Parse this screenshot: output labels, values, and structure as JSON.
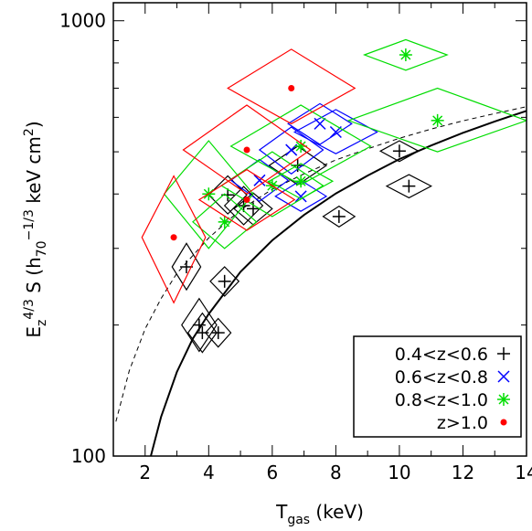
{
  "chart_data": {
    "type": "scatter",
    "xlabel_main": "T",
    "xlabel_sub": "gas",
    "xlabel_rest": " (keV)",
    "ylabel_a": "E",
    "ylabel_a_sub": "z",
    "ylabel_a_sup": "4/3",
    "ylabel_b": " S (h",
    "ylabel_b_sub": "70",
    "ylabel_b_sup": "−1/3",
    "ylabel_c": " keV cm",
    "ylabel_c_sup": "2",
    "ylabel_d": ")",
    "xlim": [
      1,
      14
    ],
    "ylim": [
      100,
      1100
    ],
    "y_log": true,
    "x_ticks": [
      2,
      4,
      6,
      8,
      10,
      12,
      14
    ],
    "x_tick_labels": [
      "2",
      "4",
      "6",
      "8",
      "10",
      "12",
      "14"
    ],
    "y_ticks": [
      100,
      1000
    ],
    "y_tick_labels": [
      "100",
      "1000"
    ],
    "legend": [
      {
        "label": "0.4<z<0.6",
        "color": "#000000",
        "marker": "plus"
      },
      {
        "label": "0.6<z<0.8",
        "color": "#0000ff",
        "marker": "cross"
      },
      {
        "label": "0.8<z<1.0",
        "color": "#00dd00",
        "marker": "asterisk"
      },
      {
        "label": "z>1.0",
        "color": "#ff0000",
        "marker": "dot"
      }
    ],
    "curves": [
      {
        "style": "solid",
        "x": [
          2.18,
          2.5,
          3,
          3.5,
          4,
          5,
          6,
          7,
          8,
          9,
          10,
          11,
          12,
          13,
          14
        ],
        "y": [
          100,
          123,
          156,
          186,
          212,
          265,
          313,
          358,
          401,
          441,
          481,
          517,
          553,
          587,
          621
        ]
      },
      {
        "style": "dashed",
        "x": [
          1.08,
          1.5,
          2,
          2.5,
          3,
          4,
          5,
          6,
          7,
          8,
          9,
          10,
          11,
          12,
          13,
          14
        ],
        "y": [
          120,
          157,
          196,
          230,
          263,
          317,
          368,
          410,
          445,
          479,
          508,
          537,
          564,
          589,
          612,
          635
        ]
      }
    ],
    "series": [
      {
        "name": "0.4<z<0.6",
        "color": "#000000",
        "marker": "plus",
        "points": [
          {
            "x": 3.3,
            "y": 272,
            "dx": 0.45,
            "ylo": 241,
            "yhi": 308
          },
          {
            "x": 3.7,
            "y": 200,
            "dx": 0.55,
            "ylo": 174,
            "yhi": 230
          },
          {
            "x": 3.8,
            "y": 192,
            "dx": 0.45,
            "ylo": 173,
            "yhi": 213
          },
          {
            "x": 4.3,
            "y": 192,
            "dx": 0.4,
            "ylo": 178,
            "yhi": 207
          },
          {
            "x": 4.5,
            "y": 252,
            "dx": 0.45,
            "ylo": 233,
            "yhi": 272
          },
          {
            "x": 4.6,
            "y": 398,
            "dx": 0.6,
            "ylo": 360,
            "yhi": 440
          },
          {
            "x": 5.1,
            "y": 376,
            "dx": 0.6,
            "ylo": 340,
            "yhi": 416
          },
          {
            "x": 5.4,
            "y": 370,
            "dx": 0.6,
            "ylo": 340,
            "yhi": 402
          },
          {
            "x": 6.8,
            "y": 465,
            "dx": 0.9,
            "ylo": 420,
            "yhi": 515
          },
          {
            "x": 8.1,
            "y": 355,
            "dx": 0.5,
            "ylo": 336,
            "yhi": 375
          },
          {
            "x": 10.0,
            "y": 502,
            "dx": 0.6,
            "ylo": 475,
            "yhi": 530
          },
          {
            "x": 10.3,
            "y": 417,
            "dx": 0.7,
            "ylo": 392,
            "yhi": 443
          }
        ]
      },
      {
        "name": "0.6<z<0.8",
        "color": "#0000ff",
        "marker": "cross",
        "points": [
          {
            "x": 5.6,
            "y": 430,
            "dx": 0.9,
            "ylo": 385,
            "yhi": 480
          },
          {
            "x": 6.6,
            "y": 505,
            "dx": 1.0,
            "ylo": 445,
            "yhi": 570
          },
          {
            "x": 6.9,
            "y": 395,
            "dx": 0.8,
            "ylo": 365,
            "yhi": 430
          },
          {
            "x": 7.5,
            "y": 580,
            "dx": 1.0,
            "ylo": 520,
            "yhi": 645
          },
          {
            "x": 8.0,
            "y": 555,
            "dx": 1.3,
            "ylo": 495,
            "yhi": 625
          }
        ]
      },
      {
        "name": "0.8<z<1.0",
        "color": "#00dd00",
        "marker": "asterisk",
        "points": [
          {
            "x": 4.0,
            "y": 400,
            "dx": 1.4,
            "ylo": 300,
            "yhi": 530
          },
          {
            "x": 4.5,
            "y": 345,
            "dx": 1.0,
            "ylo": 300,
            "yhi": 400
          },
          {
            "x": 6.0,
            "y": 418,
            "dx": 1.6,
            "ylo": 355,
            "yhi": 500
          },
          {
            "x": 6.9,
            "y": 515,
            "dx": 2.2,
            "ylo": 420,
            "yhi": 640
          },
          {
            "x": 6.9,
            "y": 428,
            "dx": 1.0,
            "ylo": 390,
            "yhi": 470
          },
          {
            "x": 10.2,
            "y": 835,
            "dx": 1.3,
            "ylo": 770,
            "yhi": 905
          },
          {
            "x": 11.2,
            "y": 590,
            "dx": 2.8,
            "ylo": 500,
            "yhi": 700
          }
        ]
      },
      {
        "name": "z>1.0",
        "color": "#ff0000",
        "marker": "dot",
        "points": [
          {
            "x": 2.9,
            "y": 318,
            "dx": 1.0,
            "ylo": 225,
            "yhi": 440
          },
          {
            "x": 5.2,
            "y": 388,
            "dx": 1.5,
            "ylo": 330,
            "yhi": 455
          },
          {
            "x": 5.2,
            "y": 505,
            "dx": 2.0,
            "ylo": 400,
            "yhi": 640
          },
          {
            "x": 6.6,
            "y": 700,
            "dx": 2.0,
            "ylo": 580,
            "yhi": 860
          }
        ]
      }
    ]
  }
}
